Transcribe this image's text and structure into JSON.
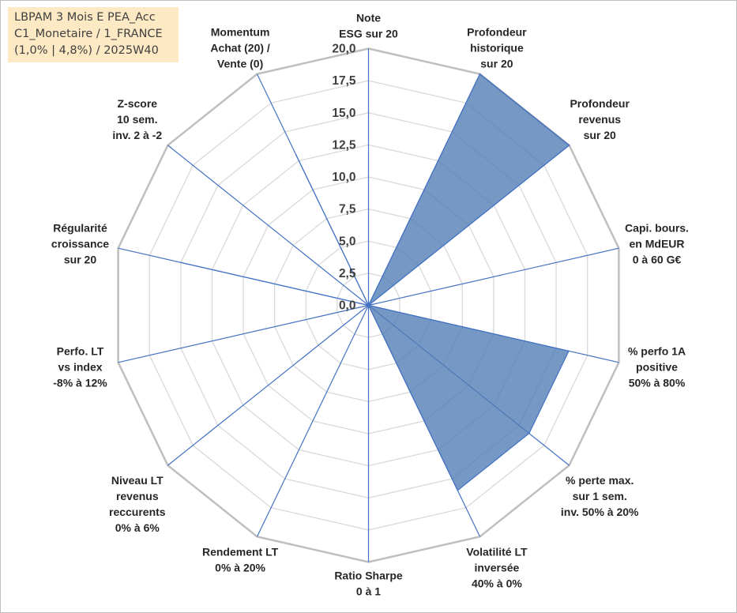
{
  "title_box": {
    "lines": [
      "LBPAM 3 Mois E PEA_Acc",
      "C1_Monetaire / 1_FRANCE",
      "(1,0% | 4,8%) / 2025W40"
    ]
  },
  "colors": {
    "series_fill": "#4f7bb3",
    "series_stroke": "#4472c4",
    "spoke": "#4472c4",
    "ring": "#d9d9d9",
    "outer_ring": "#bfbfbf",
    "title_bg": "#fde9c4"
  },
  "chart_data": {
    "type": "radar",
    "scale_min": 0,
    "scale_max": 20,
    "tick_step": 2.5,
    "tick_labels": [
      "0,0",
      "2,5",
      "5,0",
      "7,5",
      "10,0",
      "12,5",
      "15,0",
      "17,5",
      "20,0"
    ],
    "axes": [
      {
        "label": [
          "Note",
          "ESG sur 20"
        ]
      },
      {
        "label": [
          "Profondeur",
          "historique",
          "sur 20"
        ]
      },
      {
        "label": [
          "Profondeur",
          "revenus",
          "sur 20"
        ]
      },
      {
        "label": [
          "Capi. bours.",
          "en MdEUR",
          "0 à 60 G€"
        ]
      },
      {
        "label": [
          "% perfo 1A",
          "positive",
          "50% à 80%"
        ]
      },
      {
        "label": [
          "% perte max.",
          "sur 1 sem.",
          "inv. 50% à 20%"
        ]
      },
      {
        "label": [
          "Volatilité LT",
          "inversée",
          "40% à 0%"
        ]
      },
      {
        "label": [
          "Ratio Sharpe",
          "0 à 1"
        ]
      },
      {
        "label": [
          "Rendement LT",
          "0% à 20%"
        ]
      },
      {
        "label": [
          "Niveau LT",
          "revenus",
          "reccurents",
          "0% à 6%"
        ]
      },
      {
        "label": [
          "Perfo. LT",
          "vs index",
          "-8% à 12%"
        ]
      },
      {
        "label": [
          "Régularité",
          "croissance",
          "sur 20"
        ]
      },
      {
        "label": [
          "Z-score",
          "10 sem.",
          "inv. 2 à -2"
        ]
      },
      {
        "label": [
          "Momentum",
          "Achat (20) /",
          "Vente (0)"
        ]
      }
    ],
    "series": [
      {
        "values": [
          0,
          20,
          20,
          0,
          16,
          16,
          16,
          0,
          0,
          0,
          0,
          15,
          0,
          13
        ]
      }
    ]
  }
}
